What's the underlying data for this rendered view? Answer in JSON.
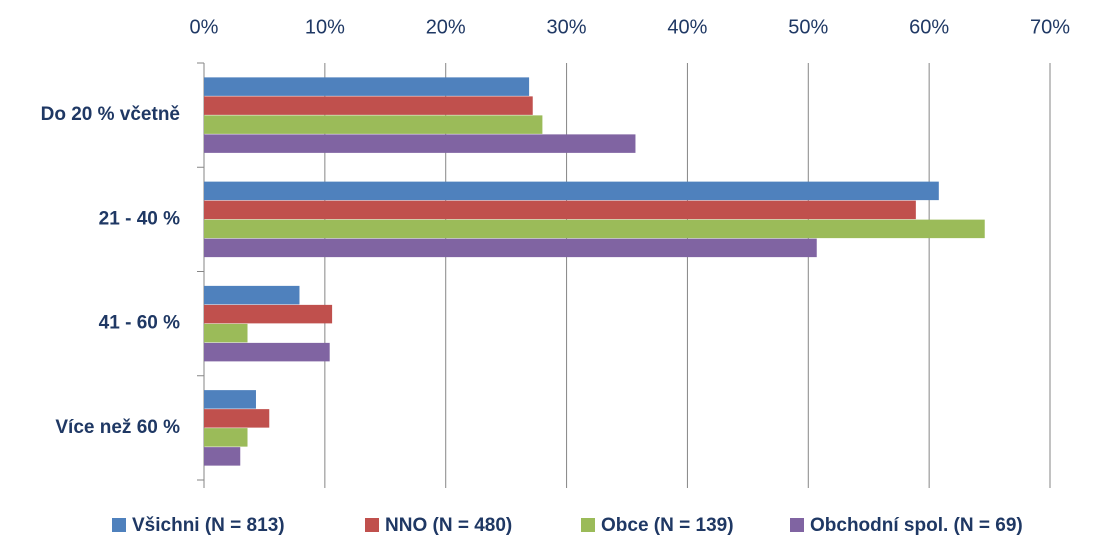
{
  "chart_data": {
    "type": "barh",
    "categories": [
      "Do 20 % včetně",
      "21 - 40 %",
      "41 - 60 %",
      "Více než 60 %"
    ],
    "series": [
      {
        "name": "Všichni (N = 813)",
        "color": "#4f81bd",
        "values": [
          26.9,
          60.8,
          7.9,
          4.3
        ]
      },
      {
        "name": "NNO (N = 480)",
        "color": "#c0504d",
        "values": [
          27.2,
          58.9,
          10.6,
          5.4
        ]
      },
      {
        "name": "Obce (N = 139)",
        "color": "#9bbb59",
        "values": [
          28.0,
          64.6,
          3.6,
          3.6
        ]
      },
      {
        "name": "Obchodní spol. (N = 69)",
        "color": "#8064a2",
        "values": [
          35.7,
          50.7,
          10.4,
          3.0
        ]
      }
    ],
    "xlim": [
      0,
      70
    ],
    "xticks": [
      {
        "value": 0,
        "label": "0%"
      },
      {
        "value": 10,
        "label": "10%"
      },
      {
        "value": 20,
        "label": "20%"
      },
      {
        "value": 30,
        "label": "30%"
      },
      {
        "value": 40,
        "label": "40%"
      },
      {
        "value": 50,
        "label": "50%"
      },
      {
        "value": 60,
        "label": "60%"
      },
      {
        "value": 70,
        "label": "70%"
      }
    ],
    "grid": true
  }
}
